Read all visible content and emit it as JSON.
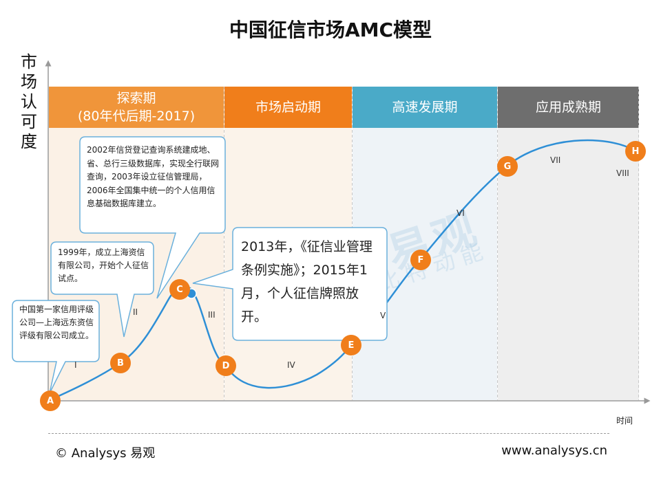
{
  "title": "中国征信市场AMC模型",
  "y_axis_label": "市场认可度",
  "x_axis_label": "时间",
  "phases": [
    {
      "label": "探索期",
      "sublabel": "(80年代后期-2017)",
      "color": "#f0953a",
      "bg": "#fbf1e6"
    },
    {
      "label": "市场启动期",
      "sublabel": "",
      "color": "#f07e1b",
      "bg": "#fbf3ea"
    },
    {
      "label": "高速发展期",
      "sublabel": "",
      "color": "#4aaac8",
      "bg": "#eef3f7"
    },
    {
      "label": "应用成熟期",
      "sublabel": "",
      "color": "#6e6e6e",
      "bg": "#eeeeee"
    }
  ],
  "points": [
    {
      "label": "A"
    },
    {
      "label": "B"
    },
    {
      "label": "C"
    },
    {
      "label": "D"
    },
    {
      "label": "E"
    },
    {
      "label": "F"
    },
    {
      "label": "G"
    },
    {
      "label": "H"
    }
  ],
  "roman_labels": [
    "I",
    "II",
    "III",
    "IV",
    "V",
    "VI",
    "VII",
    "VIII"
  ],
  "callouts": {
    "c1": "中国第一家信用评级公司—上海远东资信评级有限公司成立。",
    "c2": "1999年，成立上海资信有限公司，开始个人征信试点。",
    "c3": "2002年信贷登记查询系统建成地、省、总行三级数据库，实现全行联网查询，2003年设立征信管理局，2006年全国集中统一的个人信用信息基础数据库建立。",
    "c4": "2013年，《征信业管理条例实施》；2015年1月，个人征信牌照放开。"
  },
  "watermark": {
    "brand": "易观",
    "slogan": "指数成长的比特动能"
  },
  "footer": {
    "left": "© Analysys 易观",
    "right": "www.analysys.cn"
  },
  "colors": {
    "curve": "#2e8fd6",
    "marker": "#f07e1b",
    "callout_border": "#6ab0dc"
  }
}
